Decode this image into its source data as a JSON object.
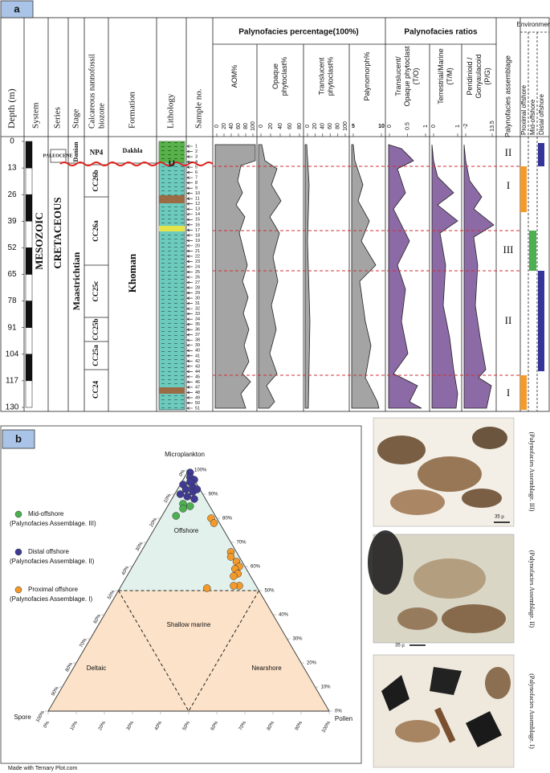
{
  "panel_a": {
    "label": "a",
    "columns": {
      "depth": "Depth (m)",
      "system": "System",
      "series": "Series",
      "stage": "Stage",
      "biozone": [
        "Calcareous nannofossil",
        "biozone"
      ],
      "formation": "Formation",
      "lithology": "Lithology",
      "sample": "Sample no."
    },
    "group_percentage": "Palynofacies percentage(100%)",
    "group_ratios": "Palynofacies ratios",
    "sub": {
      "aom": [
        "AOM%"
      ],
      "opaque": [
        "Opaque",
        "phytoclast%"
      ],
      "translucent": [
        "Translucent",
        "phytoclast%"
      ],
      "palynomorph": [
        "Palynomorph%"
      ],
      "to": [
        "Translucent/",
        "Opaque phytoclast",
        "(T/O)"
      ],
      "tm": [
        "Terrestrial/Marine",
        "(T/M)"
      ],
      "pg": [
        "Peridinioid /",
        "Gonyaulacoid",
        "(P/G)"
      ],
      "assemblage": [
        "Palynofacies assemblage"
      ]
    },
    "environment": {
      "title": "Environment",
      "proximal": "Proximal offshore",
      "mid": "Mid-offshore",
      "distal": "Distal offshore"
    },
    "scales": {
      "aom": [
        0,
        20,
        40,
        60,
        80,
        100
      ],
      "opaque": [
        0,
        20,
        40,
        60,
        80
      ],
      "translucent": [
        0,
        20,
        40,
        60,
        80,
        100
      ],
      "palynomorph": [
        5,
        10
      ],
      "to": [
        0,
        0.5,
        1
      ],
      "tm": [
        0,
        1
      ],
      "pg": [
        -2,
        13.5
      ]
    },
    "depth_ticks": [
      0,
      13,
      26,
      39,
      52,
      65,
      78,
      91,
      104,
      117,
      130
    ],
    "system": "MESOZOIC",
    "series": [
      "PALEOCENE",
      "CRETACEOUS"
    ],
    "stage": [
      "Danian",
      "Maastrichtian"
    ],
    "biozones": [
      "NP4",
      "CC26b",
      "CC26a",
      "CC25c",
      "CC25b",
      "CC25a",
      "CC24"
    ],
    "formations": [
      "Dakhla",
      "Khoman"
    ],
    "unconformity": "U",
    "samples": [
      1,
      2,
      3,
      4,
      5,
      6,
      7,
      8,
      9,
      10,
      11,
      12,
      13,
      14,
      15,
      16,
      17,
      18,
      19,
      20,
      21,
      22,
      23,
      24,
      25,
      26,
      27,
      28,
      29,
      30,
      31,
      32,
      33,
      34,
      35,
      36,
      37,
      38,
      39,
      40,
      41,
      42,
      43,
      44,
      45,
      46,
      47,
      48,
      49,
      50,
      51
    ],
    "assemblages": [
      "II",
      "I",
      "III",
      "II",
      "I"
    ]
  },
  "panel_b": {
    "label": "b",
    "apex": {
      "top": "Microplankton",
      "left": "Spore",
      "right": "Pollen"
    },
    "zones": {
      "offshore": "Offshore",
      "shallow": "Shallow marine",
      "deltaic": "Deltaic",
      "nearshore": "Nearshore"
    },
    "ticks": [
      {
        "value": 0,
        "label": "0%"
      },
      {
        "value": 10,
        "label": "10%"
      },
      {
        "value": 20,
        "label": "20%"
      },
      {
        "value": 30,
        "label": "30%"
      },
      {
        "value": 40,
        "label": "40%"
      },
      {
        "value": 50,
        "label": "50%"
      },
      {
        "value": 60,
        "label": "60%"
      },
      {
        "value": 70,
        "label": "70%"
      },
      {
        "value": 80,
        "label": "80%"
      },
      {
        "value": 90,
        "label": "90%"
      },
      {
        "value": 100,
        "label": "100%"
      }
    ],
    "groups": [
      {
        "name": "Mid-offshore",
        "note": "(Palynofacies Assemblage. III)",
        "color": "#4caf50",
        "points": [
          [
            86,
            5
          ],
          [
            85,
            8
          ],
          [
            84,
            6
          ],
          [
            81,
            5
          ]
        ]
      },
      {
        "name": "Distal offshore",
        "note": "(Palynofacies Assemblage. II)",
        "color": "#3f3a94",
        "points": [
          [
            99,
            1
          ],
          [
            97,
            2
          ],
          [
            96,
            4
          ],
          [
            94,
            1
          ],
          [
            93,
            5
          ],
          [
            92,
            3
          ],
          [
            91,
            6
          ],
          [
            90,
            2
          ],
          [
            89,
            5
          ],
          [
            88,
            8
          ],
          [
            95,
            3
          ],
          [
            92,
            7
          ]
        ]
      },
      {
        "name": "Proximal offshore",
        "note": "(Palynofacies Assemblage. I)",
        "color": "#f39a2b",
        "points": [
          [
            80,
            18
          ],
          [
            78,
            20
          ],
          [
            66,
            32
          ],
          [
            64,
            33
          ],
          [
            62,
            36
          ],
          [
            60,
            38
          ],
          [
            59,
            37
          ],
          [
            57,
            39
          ],
          [
            56,
            38
          ],
          [
            52,
            42
          ],
          [
            52,
            40
          ],
          [
            51,
            31
          ]
        ]
      }
    ],
    "watermark": "Made with Ternary Plot.com"
  },
  "photos": {
    "captions": [
      "(Palynofacies Assemblage. III)",
      "(Palynofacies Assemblage. II)",
      "(Palynofacies Assemblage. I)"
    ],
    "scale": "35 µ"
  }
}
